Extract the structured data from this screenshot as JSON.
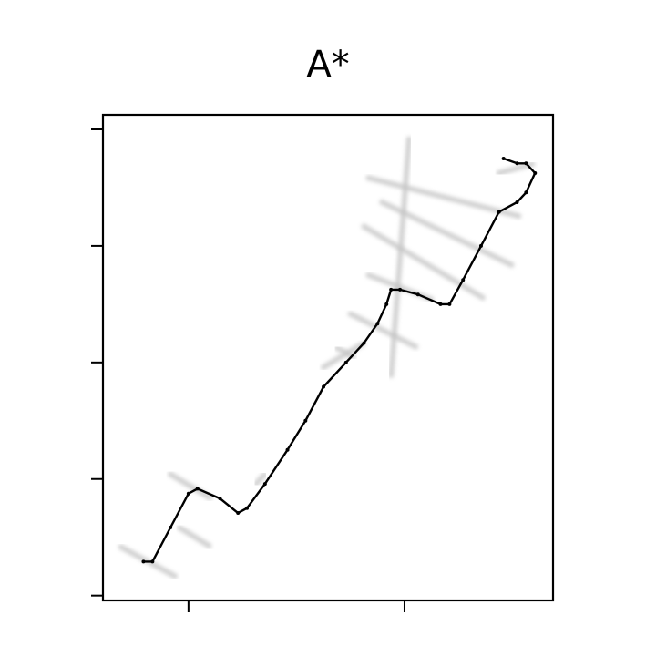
{
  "chart_data": {
    "type": "line",
    "title": "A*",
    "xlabel": "",
    "ylabel": "",
    "xlim": [
      0,
      1
    ],
    "ylim": [
      0,
      1
    ],
    "grid": false,
    "legend": "none",
    "x_ticks": [
      0.19,
      0.67
    ],
    "y_ticks": [
      0.01,
      0.25,
      0.49,
      0.73,
      0.97
    ],
    "colors": {
      "path": "#000000",
      "explored": "#c4c4c4"
    },
    "series": [
      {
        "role": "explored",
        "segments": [
          [
            [
              0.04,
              0.11
            ],
            [
              0.16,
              0.05
            ]
          ],
          [
            [
              0.15,
              0.26
            ],
            [
              0.24,
              0.21
            ]
          ],
          [
            [
              0.17,
              0.15
            ],
            [
              0.24,
              0.11
            ]
          ],
          [
            [
              0.34,
              0.24
            ],
            [
              0.36,
              0.26
            ]
          ],
          [
            [
              0.49,
              0.48
            ],
            [
              0.58,
              0.53
            ]
          ],
          [
            [
              0.52,
              0.52
            ],
            [
              0.56,
              0.5
            ]
          ],
          [
            [
              0.55,
              0.59
            ],
            [
              0.7,
              0.52
            ]
          ],
          [
            [
              0.59,
              0.67
            ],
            [
              0.73,
              0.62
            ]
          ],
          [
            [
              0.58,
              0.77
            ],
            [
              0.85,
              0.62
            ]
          ],
          [
            [
              0.62,
              0.82
            ],
            [
              0.91,
              0.69
            ]
          ],
          [
            [
              0.59,
              0.87
            ],
            [
              0.93,
              0.79
            ]
          ],
          [
            [
              0.88,
              0.88
            ],
            [
              0.96,
              0.9
            ]
          ],
          [
            [
              0.68,
              0.95
            ],
            [
              0.64,
              0.46
            ]
          ]
        ]
      },
      {
        "role": "path",
        "points": [
          [
            0.09,
            0.08
          ],
          [
            0.11,
            0.08
          ],
          [
            0.15,
            0.15
          ],
          [
            0.19,
            0.22
          ],
          [
            0.21,
            0.23
          ],
          [
            0.26,
            0.21
          ],
          [
            0.3,
            0.18
          ],
          [
            0.32,
            0.19
          ],
          [
            0.36,
            0.24
          ],
          [
            0.41,
            0.31
          ],
          [
            0.45,
            0.37
          ],
          [
            0.49,
            0.44
          ],
          [
            0.54,
            0.49
          ],
          [
            0.58,
            0.53
          ],
          [
            0.61,
            0.57
          ],
          [
            0.63,
            0.61
          ],
          [
            0.64,
            0.64
          ],
          [
            0.66,
            0.64
          ],
          [
            0.7,
            0.63
          ],
          [
            0.75,
            0.61
          ],
          [
            0.77,
            0.61
          ],
          [
            0.8,
            0.66
          ],
          [
            0.84,
            0.73
          ],
          [
            0.88,
            0.8
          ],
          [
            0.92,
            0.82
          ],
          [
            0.94,
            0.84
          ],
          [
            0.96,
            0.88
          ],
          [
            0.94,
            0.9
          ],
          [
            0.92,
            0.9
          ],
          [
            0.89,
            0.91
          ]
        ]
      }
    ]
  }
}
